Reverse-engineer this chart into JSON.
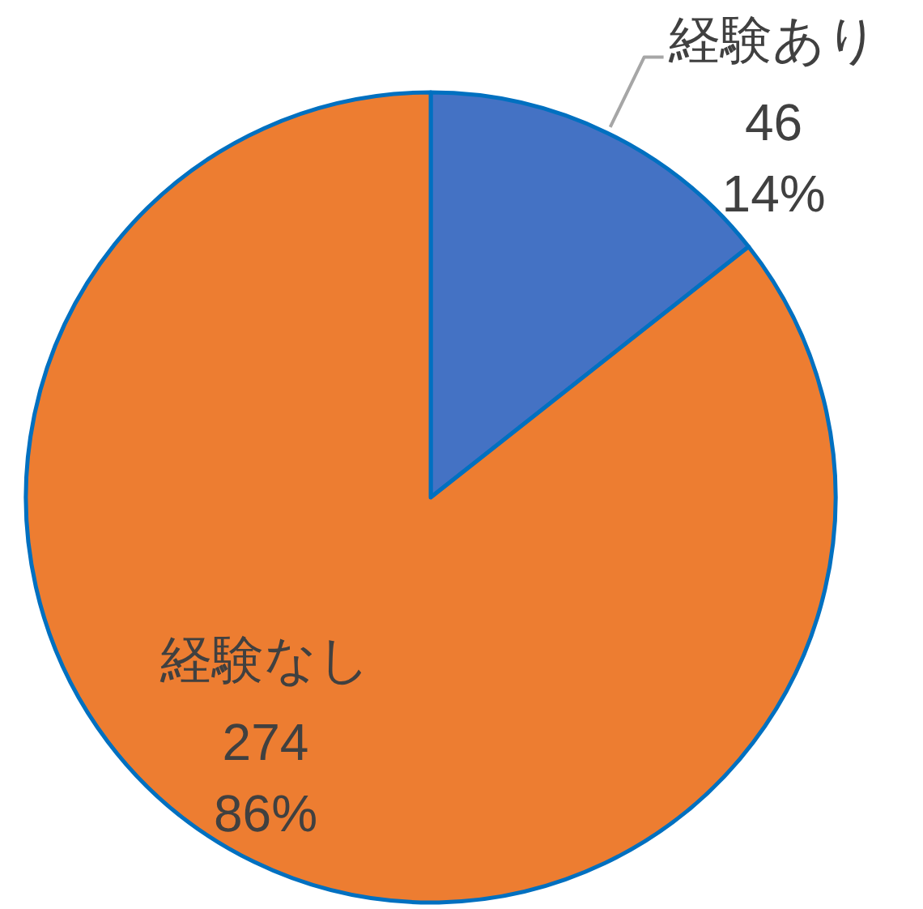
{
  "chart_data": {
    "type": "pie",
    "categories": [
      "経験あり",
      "経験なし"
    ],
    "values": [
      46,
      274
    ],
    "colors": [
      "#4472c4",
      "#ed7d31"
    ],
    "value_labels": [
      "46\n14%",
      "274\n86%"
    ]
  }
}
